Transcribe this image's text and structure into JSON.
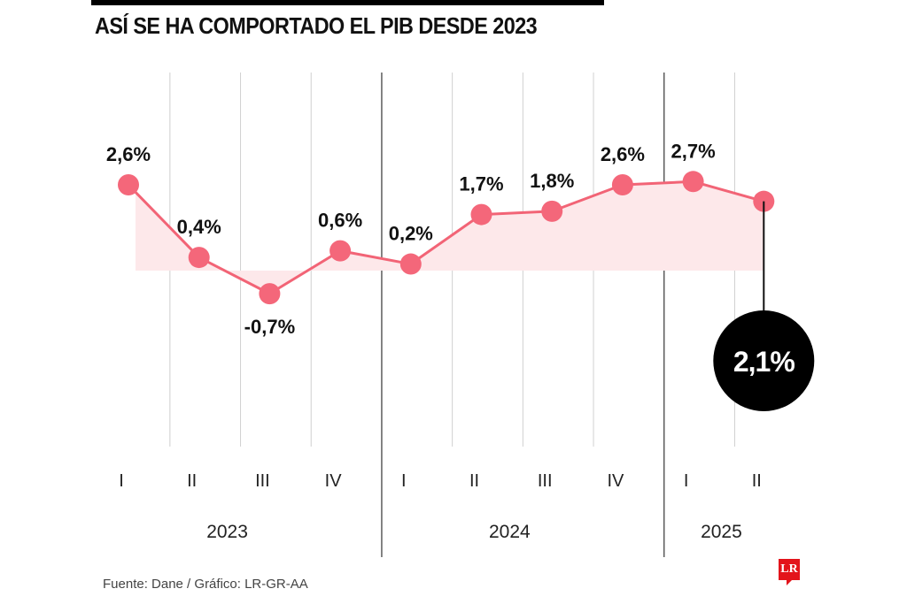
{
  "title": "ASÍ SE HA COMPORTADO EL PIB DESDE 2023",
  "source": "Fuente: Dane / Gráfico: LR-GR-AA",
  "logo": "LR",
  "colors": {
    "line": "#f26476",
    "dot": "#f4677a",
    "area": "#fde8ea",
    "gridlight": "#d0d0d0",
    "griddark": "#444444",
    "highlight": "#000000",
    "highlight_text": "#ffffff",
    "logo": "#e3141b"
  },
  "chart_data": {
    "type": "line",
    "title": "ASÍ SE HA COMPORTADO EL PIB DESDE 2023",
    "xlabel": "",
    "ylabel": "",
    "categories": [
      "I",
      "II",
      "III",
      "IV",
      "I",
      "II",
      "III",
      "IV",
      "I",
      "II"
    ],
    "years": [
      {
        "label": "2023",
        "quarters": 4
      },
      {
        "label": "2024",
        "quarters": 4
      },
      {
        "label": "2025",
        "quarters": 2
      }
    ],
    "series": [
      {
        "name": "PIB",
        "values": [
          2.6,
          0.4,
          -0.7,
          0.6,
          0.2,
          1.7,
          1.8,
          2.6,
          2.7,
          2.1
        ],
        "labels": [
          "2,6%",
          "0,4%",
          "-0,7%",
          "0,6%",
          "0,2%",
          "1,7%",
          "1,8%",
          "2,6%",
          "2,7%",
          "2,1%"
        ]
      }
    ],
    "highlight": {
      "index": 9,
      "label": "2,1%"
    },
    "area_fill": true,
    "grid": true,
    "legend": "none"
  }
}
